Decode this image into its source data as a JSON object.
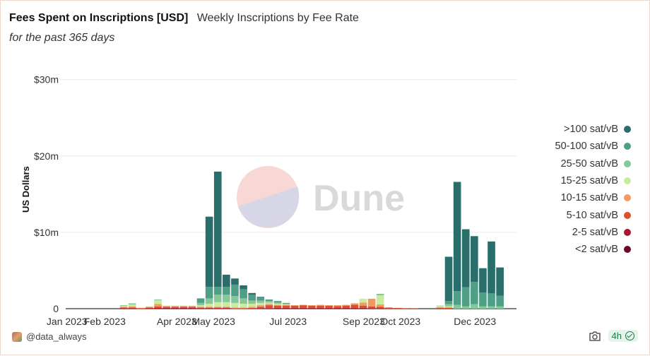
{
  "header": {
    "title": "Fees Spent on Inscriptions [USD]",
    "subtitle": "Weekly Inscriptions by Fee Rate",
    "description": "for the past 365 days"
  },
  "watermark": {
    "text": "Dune"
  },
  "footer": {
    "author": "@data_always",
    "refresh": "4h"
  },
  "colors": {
    ">100 sat/vB": "#2a6e6c",
    "50-100 sat/vB": "#4f9f86",
    "25-50 sat/vB": "#86c79a",
    "15-25 sat/vB": "#c9eca0",
    "10-15 sat/vB": "#f19a5c",
    "5-10 sat/vB": "#db4f2b",
    "2-5 sat/vB": "#a8192c",
    "<2 sat/vB": "#6b0a2a"
  },
  "chart_data": {
    "type": "bar",
    "stacked": true,
    "title": "Fees Spent on Inscriptions [USD]",
    "subtitle": "Weekly Inscriptions by Fee Rate",
    "ylabel": "US Dollars",
    "xlabel": "",
    "ylim": [
      0,
      32
    ],
    "yticks": [
      0,
      10,
      20,
      30
    ],
    "ytick_labels": [
      "0",
      "$10m",
      "$20m",
      "$30m"
    ],
    "xlim": [
      "2022-12-31",
      "2024-01-04"
    ],
    "xticks": [
      "2023-01-01",
      "2023-02-01",
      "2023-04-01",
      "2023-05-01",
      "2023-07-01",
      "2023-09-01",
      "2023-10-01",
      "2023-12-01"
    ],
    "xtick_labels": [
      "Jan 2023",
      "Feb 2023",
      "Apr 2023",
      "May 2023",
      "Jul 2023",
      "Sep 2023",
      "Oct 2023",
      "Dec 2023"
    ],
    "legend_position": "right",
    "units": "millions USD",
    "weeks": [
      "2023-01-02",
      "2023-01-09",
      "2023-01-16",
      "2023-01-23",
      "2023-01-30",
      "2023-02-06",
      "2023-02-13",
      "2023-02-20",
      "2023-02-27",
      "2023-03-06",
      "2023-03-13",
      "2023-03-20",
      "2023-03-27",
      "2023-04-03",
      "2023-04-10",
      "2023-04-17",
      "2023-04-24",
      "2023-05-01",
      "2023-05-08",
      "2023-05-15",
      "2023-05-22",
      "2023-05-29",
      "2023-06-05",
      "2023-06-12",
      "2023-06-19",
      "2023-06-26",
      "2023-07-03",
      "2023-07-10",
      "2023-07-17",
      "2023-07-24",
      "2023-07-31",
      "2023-08-07",
      "2023-08-14",
      "2023-08-21",
      "2023-08-28",
      "2023-09-04",
      "2023-09-11",
      "2023-09-18",
      "2023-09-25",
      "2023-10-02",
      "2023-10-09",
      "2023-10-16",
      "2023-10-23",
      "2023-10-30",
      "2023-11-06",
      "2023-11-13",
      "2023-11-20",
      "2023-11-27",
      "2023-12-04",
      "2023-12-11",
      "2023-12-18"
    ],
    "series": [
      {
        "name": "<2 sat/vB",
        "values": [
          0,
          0,
          0,
          0,
          0,
          0,
          0,
          0,
          0,
          0,
          0,
          0,
          0,
          0,
          0,
          0,
          0,
          0,
          0,
          0,
          0,
          0,
          0,
          0,
          0,
          0,
          0,
          0,
          0,
          0,
          0,
          0,
          0,
          0,
          0,
          0,
          0,
          0,
          0,
          0,
          0,
          0,
          0,
          0,
          0,
          0,
          0,
          0,
          0,
          0,
          0
        ]
      },
      {
        "name": "2-5 sat/vB",
        "values": [
          0,
          0,
          0,
          0,
          0,
          0,
          0.05,
          0.05,
          0,
          0.05,
          0.1,
          0.1,
          0.1,
          0.1,
          0.1,
          0.05,
          0.05,
          0.05,
          0.05,
          0,
          0,
          0,
          0.05,
          0.05,
          0.1,
          0.1,
          0.1,
          0.1,
          0.1,
          0.1,
          0.1,
          0.1,
          0.1,
          0.1,
          0.1,
          0.05,
          0.05,
          0,
          0,
          0,
          0,
          0,
          0,
          0,
          0,
          0,
          0,
          0,
          0,
          0,
          0
        ]
      },
      {
        "name": "5-10 sat/vB",
        "values": [
          0,
          0,
          0,
          0,
          0,
          0,
          0.1,
          0.1,
          0.05,
          0.1,
          0.2,
          0.15,
          0.15,
          0.15,
          0.15,
          0.1,
          0.1,
          0.1,
          0.1,
          0.05,
          0.05,
          0.1,
          0.2,
          0.4,
          0.3,
          0.3,
          0.3,
          0.35,
          0.3,
          0.3,
          0.3,
          0.25,
          0.3,
          0.4,
          0.3,
          0.25,
          0.2,
          0.15,
          0.1,
          0.05,
          0.05,
          0,
          0,
          0.1,
          0.1,
          0,
          0,
          0,
          0,
          0,
          0
        ]
      },
      {
        "name": "10-15 sat/vB",
        "values": [
          0,
          0,
          0,
          0,
          0,
          0,
          0.1,
          0.15,
          0.05,
          0.1,
          0.3,
          0.1,
          0.1,
          0.1,
          0.1,
          0.1,
          0.1,
          0.1,
          0.1,
          0.1,
          0.1,
          0.15,
          0.2,
          0.15,
          0.1,
          0.1,
          0.05,
          0.05,
          0.05,
          0.1,
          0.05,
          0.1,
          0.1,
          0.2,
          0.4,
          1.0,
          0.3,
          0,
          0,
          0,
          0,
          0,
          0,
          0.1,
          0.1,
          0,
          0,
          0,
          0,
          0,
          0
        ]
      },
      {
        "name": "15-25 sat/vB",
        "values": [
          0,
          0,
          0,
          0,
          0,
          0,
          0.1,
          0.25,
          0.05,
          0.05,
          0.5,
          0.05,
          0.05,
          0.05,
          0.05,
          0.2,
          0.4,
          0.6,
          0.6,
          0.6,
          0.5,
          0.4,
          0.3,
          0.2,
          0.15,
          0.1,
          0,
          0,
          0,
          0,
          0,
          0,
          0,
          0,
          0.5,
          0,
          1.2,
          0,
          0,
          0,
          0,
          0,
          0,
          0.15,
          0.1,
          0,
          0,
          0,
          0,
          0,
          0
        ]
      },
      {
        "name": "25-50 sat/vB",
        "values": [
          0,
          0,
          0,
          0,
          0,
          0,
          0.1,
          0.15,
          0,
          0,
          0.1,
          0,
          0,
          0,
          0,
          0.3,
          0.7,
          1.0,
          1.0,
          0.9,
          0.7,
          0.4,
          0.3,
          0.2,
          0.15,
          0.05,
          0,
          0,
          0,
          0,
          0,
          0,
          0,
          0,
          0,
          0,
          0.2,
          0,
          0,
          0,
          0,
          0,
          0,
          0.05,
          0.3,
          0.5,
          0.3,
          0.6,
          0.3,
          0.3,
          0.3
        ]
      },
      {
        "name": "50-100 sat/vB",
        "values": [
          0,
          0,
          0,
          0,
          0,
          0,
          0,
          0,
          0,
          0,
          0,
          0,
          0,
          0,
          0,
          0.6,
          1.5,
          1.0,
          1.0,
          1.5,
          1.2,
          0.8,
          0.4,
          0.2,
          0.2,
          0.1,
          0,
          0,
          0,
          0,
          0,
          0,
          0,
          0,
          0,
          0,
          0,
          0,
          0,
          0,
          0,
          0,
          0,
          0,
          0.4,
          1.8,
          2.5,
          2.9,
          1.8,
          1.7,
          1.4
        ]
      },
      {
        "name": ">100 sat/vB",
        "values": [
          0,
          0,
          0,
          0,
          0,
          0,
          0,
          0,
          0,
          0,
          0,
          0,
          0,
          0,
          0,
          0,
          9.2,
          15.1,
          1.6,
          0.8,
          0.5,
          0.2,
          0.1,
          0,
          0,
          0,
          0,
          0,
          0,
          0,
          0,
          0,
          0,
          0,
          0,
          0,
          0,
          0,
          0,
          0,
          0,
          0,
          0,
          0,
          5.8,
          14.3,
          7.6,
          6.0,
          3.2,
          6.8,
          3.7
        ]
      }
    ]
  }
}
